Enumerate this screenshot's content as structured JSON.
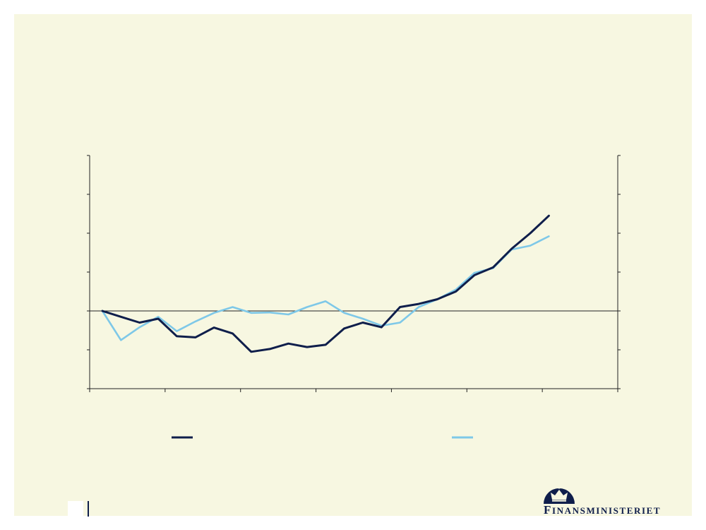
{
  "brand": {
    "logo_initial": "F",
    "logo_rest": "INANSMINISTERIET",
    "color": "#0f1e4b"
  },
  "colors": {
    "background": "#f7f7e1",
    "series_dark": "#0f1e4b",
    "series_light": "#7ec8e8"
  },
  "chart_data": {
    "type": "line",
    "title": "",
    "xlabel": "",
    "ylabel": "",
    "ylim": [
      -2,
      4
    ],
    "grid": false,
    "zero_line": true,
    "legend_position": "bottom",
    "x": [
      1,
      2,
      3,
      4,
      5,
      6,
      7,
      8,
      9,
      10,
      11,
      12,
      13,
      14,
      15,
      16,
      17,
      18,
      19,
      20,
      21,
      22,
      23,
      24,
      25
    ],
    "series": [
      {
        "color": "#0f1e4b",
        "values": [
          0,
          -0.15,
          -0.3,
          -0.2,
          -0.65,
          -0.68,
          -0.43,
          -0.58,
          -1.05,
          -0.98,
          -0.84,
          -0.93,
          -0.87,
          -0.45,
          -0.3,
          -0.42,
          0.1,
          0.18,
          0.3,
          0.5,
          0.92,
          1.12,
          1.6,
          2.0,
          2.45
        ]
      },
      {
        "color": "#7ec8e8",
        "values": [
          0,
          -0.75,
          -0.42,
          -0.15,
          -0.52,
          -0.27,
          -0.05,
          0.1,
          -0.05,
          -0.04,
          -0.09,
          0.1,
          0.25,
          -0.05,
          -0.2,
          -0.38,
          -0.3,
          0.1,
          0.3,
          0.55,
          0.98,
          1.1,
          1.58,
          1.68,
          1.92
        ]
      }
    ]
  }
}
